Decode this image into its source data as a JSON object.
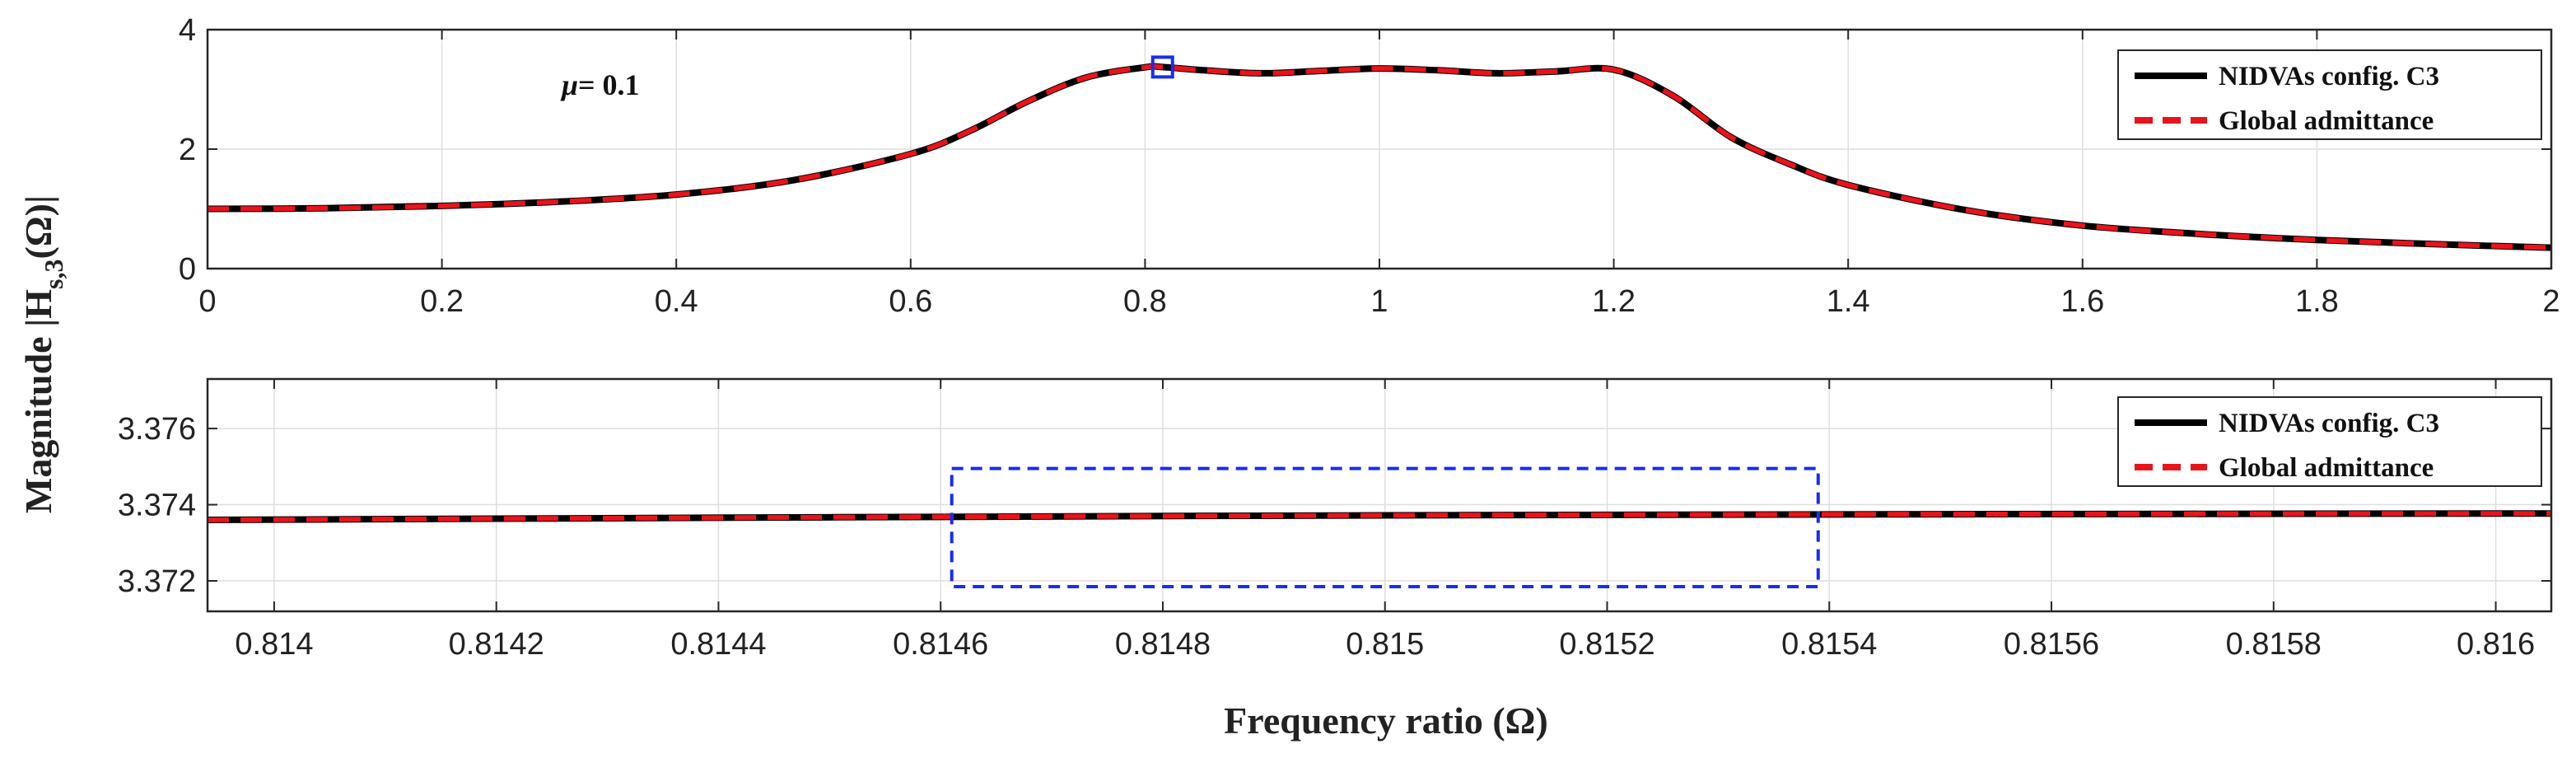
{
  "figure": {
    "ylabel": "Magnitude |Hs,3(Ω)|",
    "ylabel_main": "Magnitude |H",
    "ylabel_sub": "s,3",
    "ylabel_tail": "(Ω)|",
    "xlabel": "Frequency ratio (Ω)"
  },
  "colors": {
    "series1": "#000000",
    "series2": "#e8141b",
    "marker": "#1a2cf0",
    "grid": "#dedede",
    "axis": "#262626"
  },
  "chart_data": [
    {
      "type": "line",
      "title": "",
      "annotation": "μ= 0.1",
      "annotation_symbol": "μ",
      "annotation_value": "= 0.1",
      "xlim": [
        0,
        2
      ],
      "ylim": [
        0,
        4
      ],
      "xticks": [
        0,
        0.2,
        0.4,
        0.6,
        0.8,
        1,
        1.2,
        1.4,
        1.6,
        1.8,
        2
      ],
      "xtick_labels": [
        "0",
        "0.2",
        "0.4",
        "0.6",
        "0.8",
        "1",
        "1.2",
        "1.4",
        "1.6",
        "1.8",
        "2"
      ],
      "yticks": [
        0,
        2,
        4
      ],
      "ytick_labels": [
        "0",
        "2",
        "4"
      ],
      "grid": true,
      "legend_position": "top-right",
      "legend": [
        "NIDVAs config. C3",
        "Global admittance"
      ],
      "series": [
        {
          "name": "NIDVAs config. C3",
          "style": "solid",
          "x": [
            0,
            0.1,
            0.2,
            0.3,
            0.4,
            0.5,
            0.6,
            0.65,
            0.7,
            0.75,
            0.8,
            0.815,
            0.85,
            0.9,
            0.95,
            1.0,
            1.05,
            1.1,
            1.15,
            1.2,
            1.25,
            1.3,
            1.35,
            1.4,
            1.5,
            1.6,
            1.7,
            1.8,
            1.9,
            2.0
          ],
          "y": [
            1.0,
            1.01,
            1.05,
            1.12,
            1.24,
            1.48,
            1.92,
            2.3,
            2.8,
            3.2,
            3.37,
            3.374,
            3.32,
            3.27,
            3.31,
            3.35,
            3.32,
            3.27,
            3.3,
            3.33,
            2.9,
            2.2,
            1.75,
            1.4,
            0.98,
            0.72,
            0.58,
            0.48,
            0.41,
            0.35
          ]
        },
        {
          "name": "Global admittance",
          "style": "dashed",
          "x": [
            0,
            0.1,
            0.2,
            0.3,
            0.4,
            0.5,
            0.6,
            0.65,
            0.7,
            0.75,
            0.8,
            0.815,
            0.85,
            0.9,
            0.95,
            1.0,
            1.05,
            1.1,
            1.15,
            1.2,
            1.25,
            1.3,
            1.35,
            1.4,
            1.5,
            1.6,
            1.7,
            1.8,
            1.9,
            2.0
          ],
          "y": [
            1.0,
            1.01,
            1.05,
            1.12,
            1.24,
            1.48,
            1.92,
            2.3,
            2.8,
            3.2,
            3.37,
            3.374,
            3.32,
            3.27,
            3.31,
            3.35,
            3.32,
            3.27,
            3.3,
            3.33,
            2.9,
            2.2,
            1.75,
            1.4,
            0.98,
            0.72,
            0.58,
            0.48,
            0.41,
            0.35
          ]
        }
      ],
      "marker": {
        "shape": "square",
        "x": 0.815,
        "y": 3.374
      }
    },
    {
      "type": "line",
      "title": "",
      "xlim": [
        0.81394,
        0.81605
      ],
      "ylim": [
        3.3712,
        3.3773
      ],
      "xticks": [
        0.814,
        0.8142,
        0.8144,
        0.8146,
        0.8148,
        0.815,
        0.8152,
        0.8154,
        0.8156,
        0.8158,
        0.816
      ],
      "xtick_labels": [
        "0.814",
        "0.8142",
        "0.8144",
        "0.8146",
        "0.8148",
        "0.815",
        "0.8152",
        "0.8154",
        "0.8156",
        "0.8158",
        "0.816"
      ],
      "yticks": [
        3.372,
        3.374,
        3.376
      ],
      "ytick_labels": [
        "3.372",
        "3.374",
        "3.376"
      ],
      "grid": true,
      "legend_position": "top-right",
      "legend": [
        "NIDVAs config. C3",
        "Global admittance"
      ],
      "series": [
        {
          "name": "NIDVAs config. C3",
          "style": "solid",
          "x": [
            0.81394,
            0.8145,
            0.815,
            0.8155,
            0.81605
          ],
          "y": [
            3.3736,
            3.37367,
            3.37372,
            3.37375,
            3.37377
          ]
        },
        {
          "name": "Global admittance",
          "style": "dashed",
          "x": [
            0.81394,
            0.8145,
            0.815,
            0.8155,
            0.81605
          ],
          "y": [
            3.3736,
            3.37367,
            3.37372,
            3.37375,
            3.37377
          ]
        }
      ],
      "zoom_box": {
        "x": [
          0.81461,
          0.81539
        ],
        "y": [
          3.37185,
          3.37495
        ]
      }
    }
  ]
}
